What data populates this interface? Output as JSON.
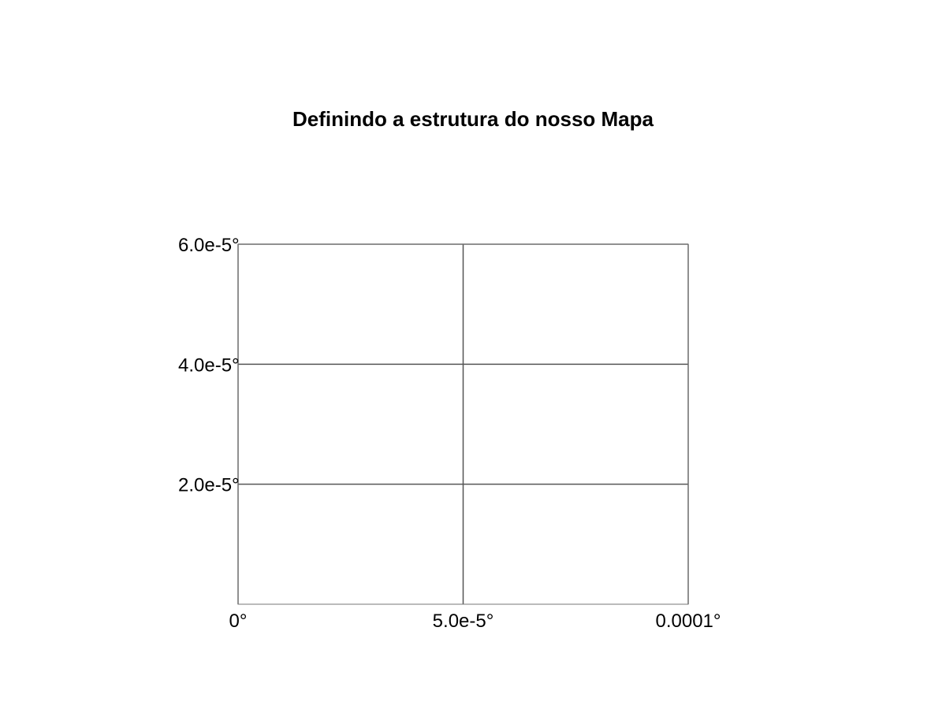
{
  "map": {
    "title": "Definindo a estrutura do nosso Mapa",
    "extent": {
      "lon": [
        0,
        0.0001
      ],
      "lat": [
        0,
        6e-05
      ]
    },
    "grid": true,
    "graticule_color": "#555555",
    "frame_color": "#777777",
    "lon_ticks": [
      {
        "value": 0,
        "label": "0°"
      },
      {
        "value": 5e-05,
        "label": "5.0e-5°"
      },
      {
        "value": 0.0001,
        "label": "0.0001°"
      }
    ],
    "lat_ticks": [
      {
        "value": 2e-05,
        "label": "2.0e-5°"
      },
      {
        "value": 4e-05,
        "label": "4.0e-5°"
      },
      {
        "value": 6e-05,
        "label": "6.0e-5°"
      }
    ]
  }
}
